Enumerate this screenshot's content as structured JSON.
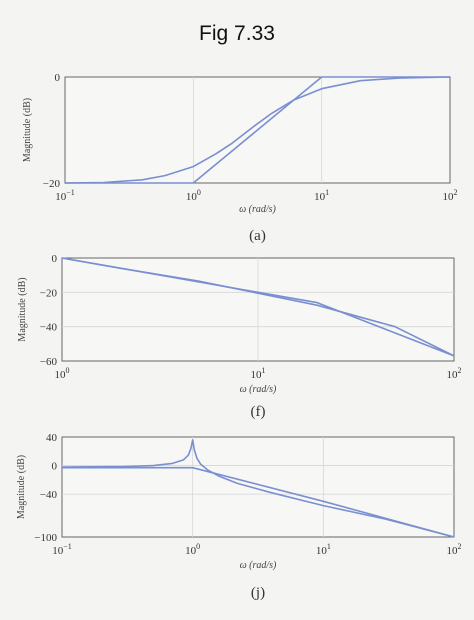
{
  "title": "Fig 7.33",
  "chart_data": [
    {
      "type": "line",
      "caption": "(a)",
      "xlabel": "ω (rad/s)",
      "ylabel": "Magnitude (dB)",
      "xscale": "log",
      "xlim": [
        0.1,
        100
      ],
      "ylim": [
        -20,
        0
      ],
      "xticks": [
        0.1,
        1,
        10,
        100
      ],
      "yticks": [
        -20,
        0
      ],
      "grid": true,
      "series": [
        {
          "x": [
            0.1,
            0.2,
            0.4,
            0.6,
            1.0,
            1.5,
            2,
            3,
            4,
            6,
            10,
            20,
            40,
            100
          ],
          "y": [
            -20.0,
            -19.9,
            -19.4,
            -18.6,
            -16.9,
            -14.5,
            -12.5,
            -9.2,
            -7.0,
            -4.4,
            -2.2,
            -0.7,
            -0.2,
            0.0
          ]
        },
        {
          "x": [
            0.1,
            1.0,
            10,
            100
          ],
          "y": [
            -20,
            -20,
            0,
            0
          ]
        }
      ]
    },
    {
      "type": "line",
      "caption": "(f)",
      "xlabel": "ω (rad/s)",
      "ylabel": "Magnitude (dB)",
      "xscale": "log",
      "xlim": [
        1,
        100
      ],
      "ylim": [
        -60,
        0
      ],
      "xticks": [
        1,
        10,
        100
      ],
      "yticks": [
        -60,
        -40,
        -20,
        0
      ],
      "grid": true,
      "series": [
        {
          "x": [
            1,
            2,
            5,
            10,
            20,
            50,
            100
          ],
          "y": [
            0,
            -6,
            -13.5,
            -20.5,
            -27.5,
            -40,
            -57
          ]
        },
        {
          "x": [
            1,
            10,
            20,
            100
          ],
          "y": [
            0,
            -20,
            -26,
            -57
          ]
        }
      ]
    },
    {
      "type": "line",
      "caption": "(j)",
      "xlabel": "ω (rad/s)",
      "ylabel": "Magnitude (dB)",
      "xscale": "log",
      "xlim": [
        0.1,
        100
      ],
      "ylim": [
        -100,
        40
      ],
      "xticks": [
        0.1,
        1,
        10,
        100
      ],
      "yticks": [
        -100,
        -40,
        0,
        40
      ],
      "grid": true,
      "series": [
        {
          "x": [
            0.1,
            0.3,
            0.5,
            0.7,
            0.85,
            0.93,
            0.97,
            1.0,
            1.03,
            1.08,
            1.15,
            1.3,
            1.6,
            2.2,
            4,
            10,
            30,
            100
          ],
          "y": [
            -2,
            -1.5,
            0,
            3,
            8,
            15,
            24,
            36,
            22,
            10,
            2,
            -6,
            -15,
            -25,
            -38,
            -56,
            -75,
            -100
          ]
        },
        {
          "x": [
            0.1,
            1,
            10,
            100
          ],
          "y": [
            -3,
            -3,
            -50,
            -100
          ]
        }
      ]
    }
  ]
}
